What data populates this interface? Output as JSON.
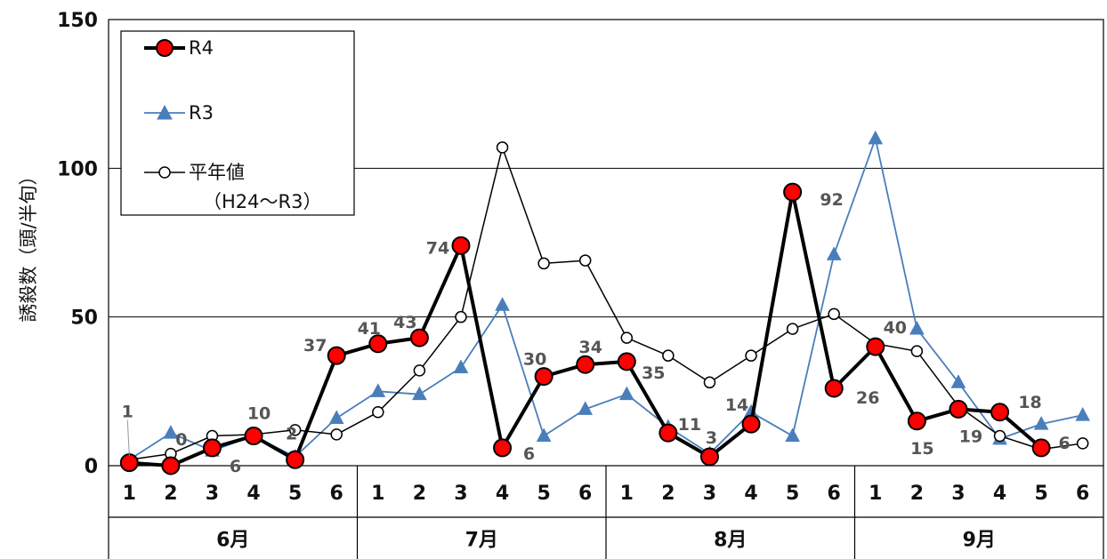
{
  "chart_data": {
    "type": "line",
    "ylabel": "誘殺数（頭/半旬）",
    "ylim": [
      0,
      150
    ],
    "yticks": [
      0,
      50,
      100,
      150
    ],
    "grid": true,
    "legend_position": "top-left",
    "categories": [
      "1",
      "2",
      "3",
      "4",
      "5",
      "6",
      "1",
      "2",
      "3",
      "4",
      "5",
      "6",
      "1",
      "2",
      "3",
      "4",
      "5",
      "6",
      "1",
      "2",
      "3",
      "4",
      "5",
      "6"
    ],
    "groups": [
      {
        "label": "6月"
      },
      {
        "label": "7月"
      },
      {
        "label": "8月"
      },
      {
        "label": "9月"
      }
    ],
    "series": [
      {
        "name": "R4",
        "color": "#000000",
        "marker": "circle-red",
        "values": [
          1,
          0,
          6,
          10,
          2,
          37,
          41,
          43,
          74,
          6,
          30,
          34,
          35,
          11,
          3,
          14,
          92,
          26,
          40,
          15,
          19,
          18,
          6,
          null
        ],
        "labels": [
          "1",
          "0",
          "6",
          "10",
          "2",
          "37",
          "41",
          "43",
          "74",
          "6",
          "30",
          "34",
          "35",
          "11",
          "3",
          "14",
          "92",
          "26",
          "40",
          "15",
          "19",
          "18",
          "6",
          ""
        ]
      },
      {
        "name": "R3",
        "color": "#4a7ebb",
        "marker": "triangle-blue",
        "values": [
          2,
          11,
          5,
          10,
          3,
          16,
          25,
          24,
          33,
          54,
          10,
          19,
          24,
          13,
          4,
          18,
          10,
          71,
          110,
          46,
          28,
          9,
          14,
          17
        ]
      },
      {
        "name": "平年値",
        "name_line2": "（H24～R3）",
        "color": "#000000",
        "marker": "circle-white",
        "values": [
          2,
          4,
          10,
          10.5,
          12,
          10.5,
          18,
          32,
          50,
          107,
          68,
          69,
          43,
          37,
          28,
          37,
          46,
          51,
          41,
          38.5,
          20,
          10,
          5.5,
          7.5
        ]
      }
    ]
  }
}
